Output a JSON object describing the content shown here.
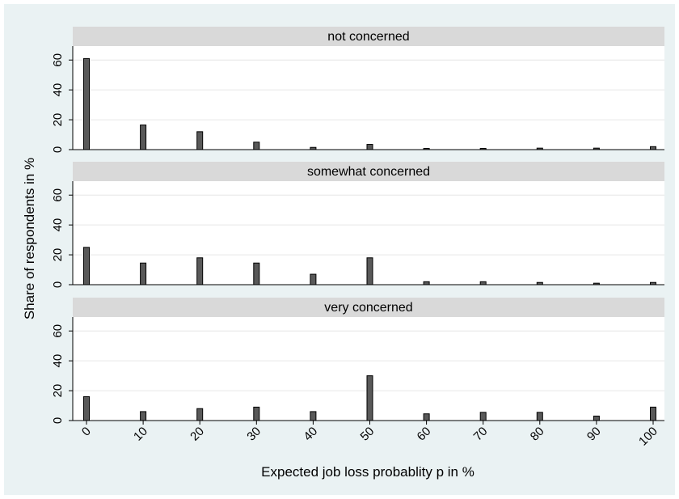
{
  "chart_data": {
    "type": "bar",
    "xlabel": "Expected job loss probablity p in %",
    "ylabel": "Share of respondents in %",
    "x": [
      0,
      10,
      20,
      30,
      40,
      50,
      60,
      70,
      80,
      90,
      100
    ],
    "x_ticks": [
      "0",
      "10",
      "20",
      "30",
      "40",
      "50",
      "60",
      "70",
      "80",
      "90",
      "100"
    ],
    "y_ticks": [
      "0",
      "20",
      "40",
      "60"
    ],
    "ylim": [
      0,
      65
    ],
    "grid": true,
    "bar_color": "#595959",
    "strip_color": "#d9d9d9",
    "background_color": "#eaf2f3",
    "panels": [
      {
        "title": "not concerned",
        "values": [
          61,
          16.5,
          12,
          5,
          1.5,
          3.5,
          0.8,
          0.8,
          1,
          1,
          2
        ]
      },
      {
        "title": "somewhat concerned",
        "values": [
          25,
          14.5,
          18,
          14.5,
          7,
          18,
          2,
          2,
          1.5,
          1,
          1.5
        ]
      },
      {
        "title": "very concerned",
        "values": [
          16,
          6,
          8,
          9,
          6,
          30,
          4.5,
          5.5,
          5.5,
          3,
          9
        ]
      }
    ]
  }
}
